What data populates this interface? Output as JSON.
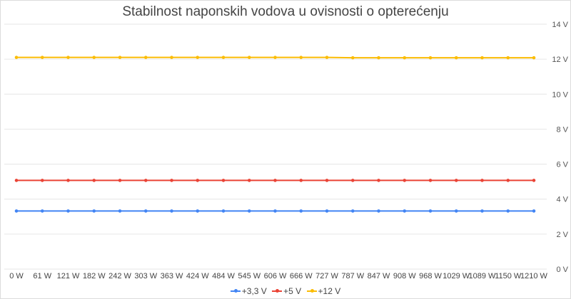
{
  "chart_data": {
    "type": "line",
    "title": "Stabilnost naponskih vodova u ovisnosti o opterećenju",
    "xlabel": "",
    "ylabel": "",
    "categories": [
      "0 W",
      "61 W",
      "121 W",
      "182 W",
      "242 W",
      "303 W",
      "363 W",
      "424 W",
      "484 W",
      "545 W",
      "606 W",
      "666 W",
      "727 W",
      "787 W",
      "847 W",
      "908 W",
      "968 W",
      "1029 W",
      "1089 W",
      "1150 W",
      "1210 W"
    ],
    "series": [
      {
        "name": "+3,3 V",
        "color": "#4285F4",
        "values": [
          3.32,
          3.32,
          3.32,
          3.32,
          3.32,
          3.32,
          3.32,
          3.32,
          3.32,
          3.32,
          3.32,
          3.32,
          3.32,
          3.32,
          3.32,
          3.32,
          3.32,
          3.32,
          3.32,
          3.32,
          3.32
        ]
      },
      {
        "name": "+5 V",
        "color": "#EA4335",
        "values": [
          5.07,
          5.07,
          5.07,
          5.07,
          5.07,
          5.07,
          5.07,
          5.07,
          5.07,
          5.07,
          5.07,
          5.07,
          5.07,
          5.07,
          5.07,
          5.07,
          5.07,
          5.07,
          5.07,
          5.07,
          5.07
        ]
      },
      {
        "name": "+12 V",
        "color": "#FBBC04",
        "values": [
          12.1,
          12.1,
          12.1,
          12.1,
          12.1,
          12.1,
          12.1,
          12.1,
          12.1,
          12.1,
          12.1,
          12.1,
          12.1,
          12.08,
          12.08,
          12.08,
          12.08,
          12.08,
          12.08,
          12.08,
          12.08
        ]
      }
    ],
    "yticks": [
      "0 V",
      "2 V",
      "4 V",
      "6 V",
      "8 V",
      "10 V",
      "12 V",
      "14 V"
    ],
    "ylim": [
      0,
      14
    ],
    "grid": true,
    "legend_position": "bottom",
    "y_axis_side": "right"
  }
}
